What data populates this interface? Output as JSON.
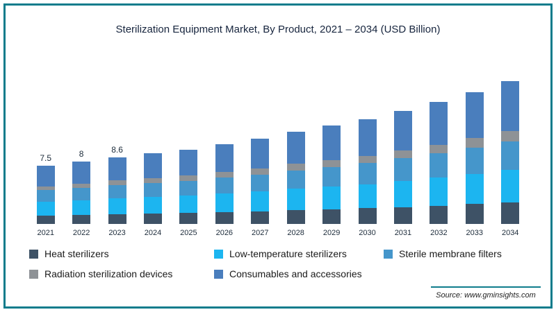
{
  "frame": {
    "border_color": "#0e7c8c"
  },
  "title": "Sterilization Equipment Market, By Product, 2021 – 2034 (USD Billion)",
  "source": "Source: www.gminsights.com",
  "chart_data": {
    "type": "bar",
    "stacked": true,
    "title": "Sterilization Equipment Market, By Product, 2021 – 2034 (USD Billion)",
    "xlabel": "",
    "ylabel": "",
    "ylim": [
      0,
      19
    ],
    "grid": false,
    "legend_position": "bottom",
    "categories": [
      "2021",
      "2022",
      "2023",
      "2024",
      "2025",
      "2026",
      "2027",
      "2028",
      "2029",
      "2030",
      "2031",
      "2032",
      "2033",
      "2034"
    ],
    "totals": [
      7.5,
      8,
      8.6,
      9.1,
      9.6,
      10.3,
      11.0,
      11.9,
      12.7,
      13.5,
      14.6,
      15.7,
      17.0,
      18.4
    ],
    "data_labels": [
      "7.5",
      "8",
      "8.6",
      "",
      "",
      "",
      "",
      "",
      "",
      "",
      "",
      "",
      "",
      ""
    ],
    "series": [
      {
        "name": "Heat sterilizers",
        "color": "#3e5266",
        "values": [
          1.12,
          1.2,
          1.29,
          1.37,
          1.44,
          1.55,
          1.65,
          1.78,
          1.9,
          2.03,
          2.19,
          2.35,
          2.55,
          2.76
        ]
      },
      {
        "name": "Low-temperature sterilizers",
        "color": "#1cb5f0",
        "values": [
          1.73,
          1.84,
          1.98,
          2.09,
          2.21,
          2.37,
          2.53,
          2.74,
          2.92,
          3.1,
          3.36,
          3.61,
          3.91,
          4.23
        ]
      },
      {
        "name": "Sterile membrane filters",
        "color": "#4596cb",
        "values": [
          1.5,
          1.6,
          1.72,
          1.82,
          1.92,
          2.06,
          2.2,
          2.38,
          2.54,
          2.7,
          2.92,
          3.14,
          3.4,
          3.68
        ]
      },
      {
        "name": "Radiation sterilization devices",
        "color": "#8e9296",
        "values": [
          0.52,
          0.56,
          0.6,
          0.64,
          0.67,
          0.72,
          0.77,
          0.83,
          0.89,
          0.95,
          1.02,
          1.1,
          1.19,
          1.29
        ]
      },
      {
        "name": "Consumables and accessories",
        "color": "#4a7ebd",
        "values": [
          2.63,
          2.8,
          3.01,
          3.18,
          3.36,
          3.6,
          3.85,
          4.17,
          4.45,
          4.72,
          5.11,
          5.5,
          5.95,
          6.44
        ]
      }
    ]
  }
}
